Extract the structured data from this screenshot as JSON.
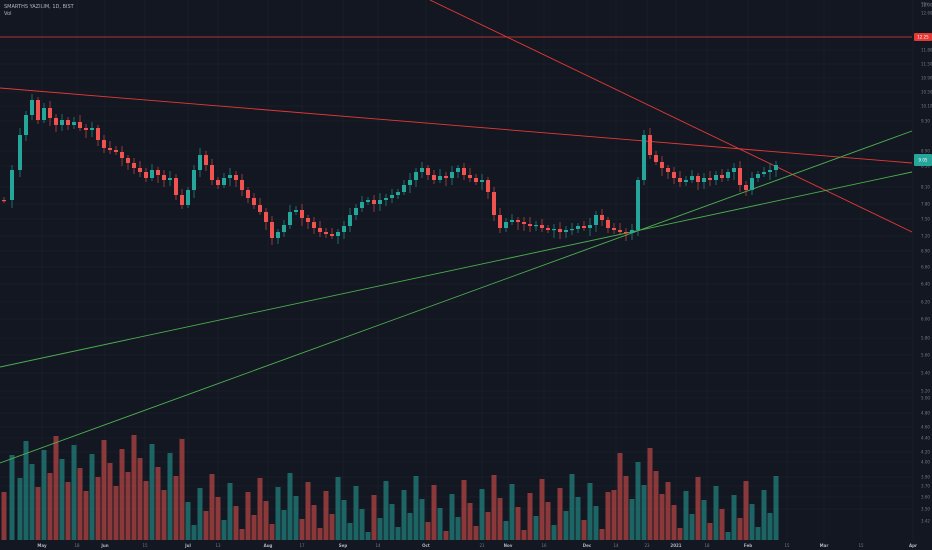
{
  "header": {
    "symbol": "SMARTHS YAZILIM, 1D, BIST",
    "volume_label": "Vol"
  },
  "price_scale": {
    "currency": "TRY",
    "ticks": [
      "12.90",
      "12.60",
      "12.20",
      "11.80",
      "11.50",
      "10.90",
      "10.50",
      "10.10",
      "9.30",
      "8.90",
      "8.50",
      "8.10",
      "7.80",
      "7.50",
      "7.20",
      "6.90",
      "6.60",
      "6.40",
      "6.20",
      "6.00",
      "5.80",
      "5.60",
      "5.40",
      "5.20",
      "5.00",
      "4.80",
      "4.60",
      "4.40",
      "4.20",
      "4.00",
      "3.90",
      "3.70",
      "3.60",
      "3.50",
      "3.42"
    ],
    "horizontal_line_label": "12.25",
    "last_price_label": "9.05"
  },
  "colors": {
    "background": "#131722",
    "up": "#26a69a",
    "down": "#ef5350",
    "trendline_red": "#e53935",
    "trendline_green": "#4caf50",
    "grid": "#1e222d",
    "last_badge": "#26a69a",
    "line_badge": "#e53935"
  },
  "chart_data": {
    "type": "candlestick",
    "title": "SMARTHS YAZILIM, 1D, BIST",
    "ylim": [
      3.4,
      13.2
    ],
    "x_ticks": [
      "May",
      "18",
      "Jun",
      "15",
      "Jul",
      "13",
      "Aug",
      "17",
      "Sep",
      "14",
      "Oct",
      "21",
      "Nov",
      "16",
      "Dec",
      "14",
      "23",
      "2021",
      "18",
      "Feb",
      "15",
      "Mar",
      "15",
      "Apr"
    ],
    "horizontal_line": 12.25,
    "last_price": 9.05,
    "trendlines": [
      {
        "color": "red",
        "from": [
          "Apr",
          "10.55"
        ],
        "to": [
          "Feb+",
          "9.0"
        ]
      },
      {
        "color": "red",
        "from": [
          "Aug",
          "13.2"
        ],
        "to": [
          "Apr",
          "7.55"
        ]
      },
      {
        "color": "green",
        "from": [
          "May",
          "5.42"
        ],
        "to": [
          "Apr",
          "8.85"
        ]
      },
      {
        "color": "green",
        "from": [
          "May",
          "4.25"
        ],
        "to": [
          "Apr",
          "9.80"
        ]
      }
    ]
  }
}
